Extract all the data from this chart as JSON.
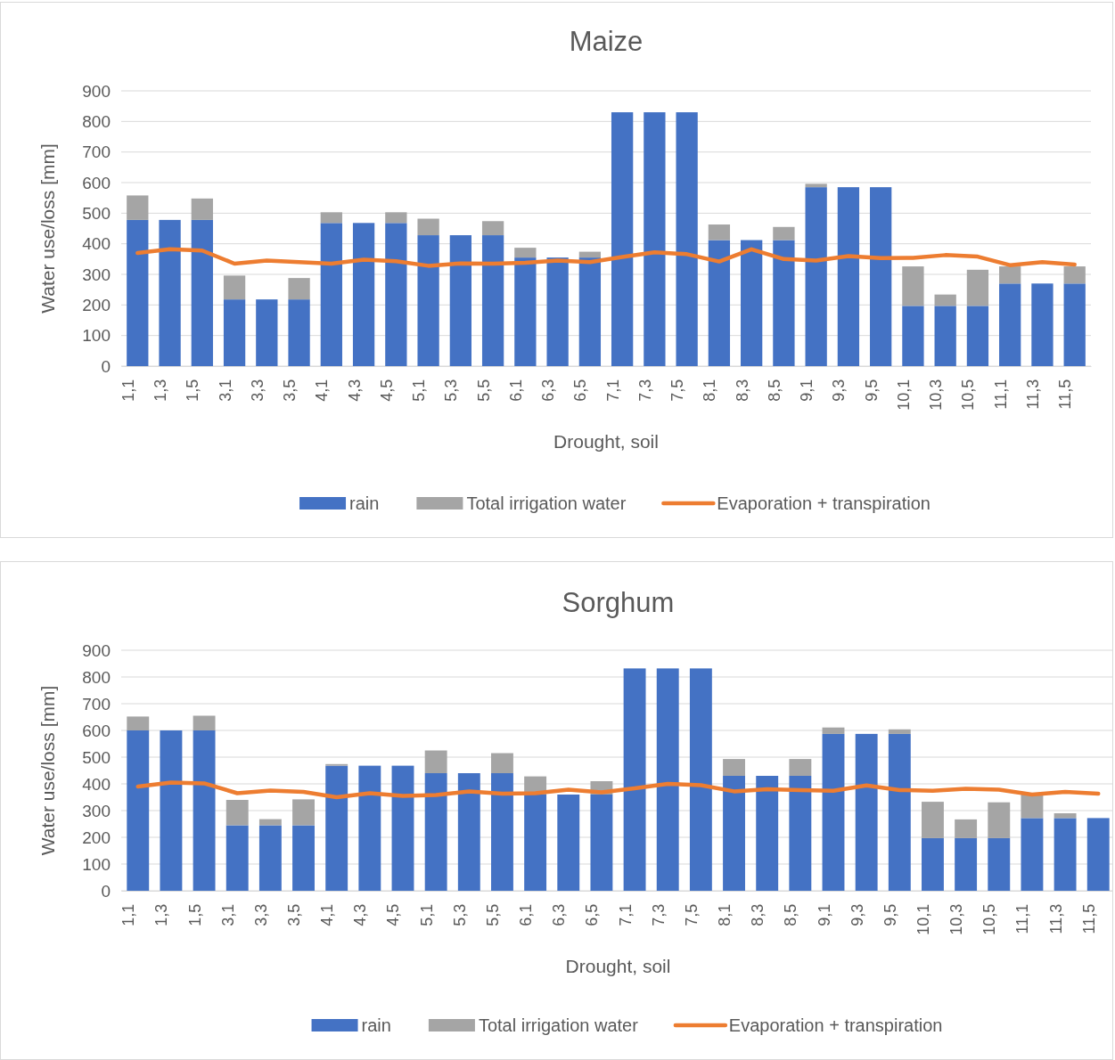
{
  "chart_data": [
    {
      "type": "bar",
      "title": "Maize",
      "xlabel": "Drought, soil",
      "ylabel": "Water use/loss [mm]",
      "stacked": true,
      "grid": "y",
      "legend": "bottom",
      "ylim": [
        0,
        900
      ],
      "yticks": [
        0,
        100,
        200,
        300,
        400,
        500,
        600,
        700,
        800,
        900
      ],
      "categories": [
        "1,1",
        "1,3",
        "1,5",
        "3,1",
        "3,3",
        "3,5",
        "4,1",
        "4,3",
        "4,5",
        "5,1",
        "5,3",
        "5,5",
        "6,1",
        "6,3",
        "6,5",
        "7,1",
        "7,3",
        "7,5",
        "8,1",
        "8,3",
        "8,5",
        "9,1",
        "9,3",
        "9,5",
        "10,1",
        "10,3",
        "10,5",
        "11,1",
        "11,3",
        "11,5"
      ],
      "series": [
        {
          "name": "rain",
          "color": "#4472c4",
          "values": [
            478,
            478,
            478,
            218,
            218,
            218,
            468,
            468,
            468,
            428,
            428,
            428,
            355,
            355,
            355,
            830,
            830,
            830,
            412,
            412,
            412,
            585,
            585,
            585,
            197,
            197,
            197,
            270,
            270,
            270
          ]
        },
        {
          "name": "Total irrigation water",
          "color": "#a5a5a5",
          "values": [
            80,
            0,
            70,
            78,
            0,
            70,
            35,
            0,
            35,
            54,
            0,
            46,
            32,
            0,
            19,
            0,
            0,
            0,
            51,
            0,
            43,
            11,
            0,
            0,
            129,
            37,
            118,
            56,
            0,
            56
          ]
        },
        {
          "name": "Evaporation + transpiration",
          "type": "line",
          "color": "#ed7d31",
          "values": [
            370,
            382,
            378,
            335,
            345,
            340,
            335,
            348,
            343,
            328,
            336,
            335,
            338,
            345,
            340,
            357,
            372,
            366,
            342,
            382,
            350,
            345,
            360,
            353,
            354,
            363,
            358,
            330,
            340,
            332
          ]
        }
      ]
    },
    {
      "type": "bar",
      "title": "Sorghum",
      "xlabel": "Drought, soil",
      "ylabel": "Water use/loss [mm]",
      "stacked": true,
      "grid": "y",
      "legend": "bottom",
      "ylim": [
        0,
        900
      ],
      "yticks": [
        0,
        100,
        200,
        300,
        400,
        500,
        600,
        700,
        800,
        900
      ],
      "categories": [
        "1,1",
        "1,3",
        "1,5",
        "3,1",
        "3,3",
        "3,5",
        "4,1",
        "4,3",
        "4,5",
        "5,1",
        "5,3",
        "5,5",
        "6,1",
        "6,3",
        "6,5",
        "7,1",
        "7,3",
        "7,5",
        "8,1",
        "8,3",
        "8,5",
        "9,1",
        "9,3",
        "9,5",
        "10,1",
        "10,3",
        "10,5",
        "11,1",
        "11,3",
        "11,5"
      ],
      "series": [
        {
          "name": "rain",
          "color": "#4472c4",
          "values": [
            600,
            600,
            600,
            245,
            245,
            245,
            468,
            468,
            468,
            440,
            440,
            440,
            360,
            360,
            360,
            832,
            832,
            832,
            430,
            430,
            430,
            587,
            587,
            587,
            197,
            197,
            197,
            272,
            272,
            272
          ]
        },
        {
          "name": "Total irrigation water",
          "color": "#a5a5a5",
          "values": [
            52,
            0,
            55,
            95,
            23,
            97,
            6,
            0,
            0,
            85,
            0,
            75,
            68,
            0,
            50,
            0,
            0,
            0,
            63,
            0,
            63,
            24,
            0,
            17,
            136,
            70,
            134,
            90,
            18,
            0
          ]
        },
        {
          "name": "Evaporation + transpiration",
          "type": "line",
          "color": "#ed7d31",
          "values": [
            390,
            405,
            402,
            365,
            375,
            370,
            350,
            365,
            355,
            358,
            372,
            363,
            365,
            378,
            368,
            383,
            400,
            395,
            372,
            380,
            377,
            374,
            394,
            377,
            374,
            382,
            378,
            360,
            370,
            363
          ]
        }
      ]
    }
  ]
}
